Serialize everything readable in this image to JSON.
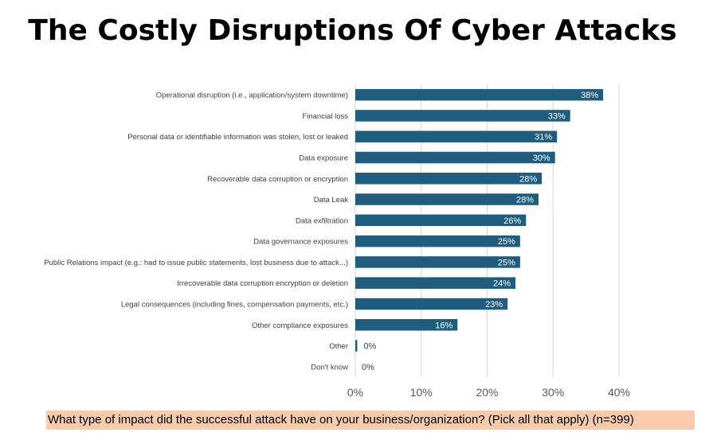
{
  "chart_data": {
    "type": "bar",
    "orientation": "horizontal",
    "title": "The Costly Disruptions Of Cyber Attacks",
    "categories": [
      "Operational disruption (i.e., application/system downtime)",
      "Financial loss",
      "Personal data or identifiable information was stolen, lost or leaked",
      "Data exposure",
      "Recoverable data corruption or encryption",
      "Data Leak",
      "Data exfiltration",
      "Data governance exposures",
      "Public Relations impact (e.g.: had to issue public statements, lost business due to attack...)",
      "Irrecoverable data corruption encryption or deletion",
      "Legal consequences (including fines, compensation payments, etc.)",
      "Other compliance exposures",
      "Other",
      "Don't know"
    ],
    "values": [
      37.6,
      32.6,
      30.6,
      30.3,
      28.3,
      27.8,
      25.9,
      25.0,
      25.0,
      24.3,
      23.1,
      15.5,
      0.3,
      0
    ],
    "value_labels": [
      "38%",
      "33%",
      "31%",
      "30%",
      "28%",
      "28%",
      "26%",
      "25%",
      "25%",
      "24%",
      "23%",
      "16%",
      "0%",
      "0%"
    ],
    "xlim": [
      0,
      40
    ],
    "xticks": [
      0,
      10,
      20,
      30,
      40
    ],
    "xtick_labels": [
      "0%",
      "10%",
      "20%",
      "30%",
      "40%"
    ],
    "grid": "vertical",
    "bar_color": "#1f5c7e",
    "footnote": "What type of impact did the successful attack have on your business/organization? (Pick all that apply) (n=399)"
  }
}
